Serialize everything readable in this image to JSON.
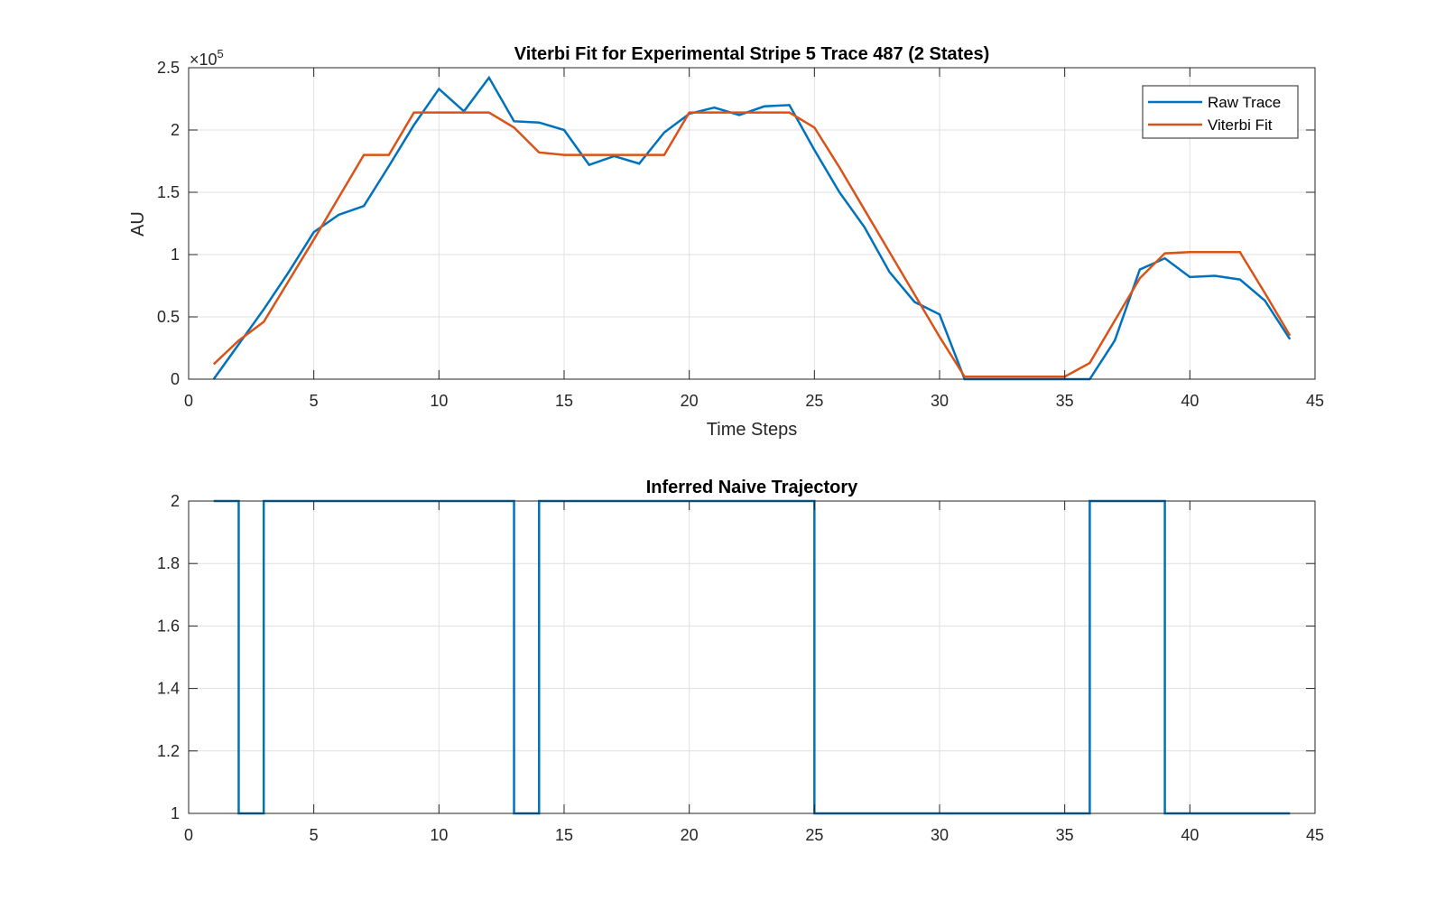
{
  "chart_data": [
    {
      "type": "line",
      "title": "Viterbi Fit for Experimental Stripe 5 Trace 487 (2 States)",
      "xlabel": "Time Steps",
      "ylabel": "AU",
      "xlim": [
        0,
        45
      ],
      "ylim": [
        0,
        250000
      ],
      "xticks": [
        0,
        5,
        10,
        15,
        20,
        25,
        30,
        35,
        40,
        45
      ],
      "xtick_labels": [
        "0",
        "5",
        "10",
        "15",
        "20",
        "25",
        "30",
        "35",
        "40",
        "45"
      ],
      "yticks": [
        0,
        50000,
        100000,
        150000,
        200000,
        250000
      ],
      "ytick_labels": [
        "0",
        "0.5",
        "1",
        "1.5",
        "2",
        "2.5"
      ],
      "y_exponent_base": "×10",
      "y_exponent_power": "5",
      "grid": true,
      "legend_position": "top-right",
      "series": [
        {
          "name": "Raw Trace",
          "color": "#0072BD",
          "x": [
            1,
            2,
            3,
            4,
            5,
            6,
            7,
            8,
            9,
            10,
            11,
            12,
            13,
            14,
            15,
            16,
            17,
            18,
            19,
            20,
            21,
            22,
            23,
            24,
            25,
            26,
            27,
            28,
            29,
            30,
            31,
            32,
            33,
            34,
            35,
            36,
            37,
            38,
            39,
            40,
            41,
            42,
            43,
            44
          ],
          "y": [
            0,
            28000,
            56000,
            86000,
            118000,
            132000,
            139000,
            171000,
            204000,
            233000,
            215000,
            242000,
            207000,
            206000,
            200000,
            172000,
            179000,
            173000,
            198000,
            213000,
            218000,
            212000,
            219000,
            220000,
            184000,
            150000,
            122000,
            86000,
            62000,
            52000,
            0,
            0,
            0,
            0,
            0,
            0,
            31000,
            88000,
            97000,
            82000,
            83000,
            80000,
            63000,
            32000
          ]
        },
        {
          "name": "Viterbi Fit",
          "color": "#D95319",
          "x": [
            1,
            2,
            3,
            4,
            5,
            6,
            7,
            8,
            9,
            10,
            11,
            12,
            13,
            14,
            15,
            16,
            17,
            18,
            19,
            20,
            21,
            22,
            23,
            24,
            25,
            26,
            27,
            28,
            29,
            30,
            31,
            32,
            33,
            34,
            35,
            36,
            37,
            38,
            39,
            40,
            41,
            42,
            43,
            44
          ],
          "y": [
            12000,
            31000,
            46000,
            79000,
            112000,
            146000,
            180000,
            180000,
            214000,
            214000,
            214000,
            214000,
            202000,
            182000,
            180000,
            180000,
            180000,
            180000,
            180000,
            214000,
            214000,
            214000,
            214000,
            214000,
            202000,
            170000,
            136000,
            102000,
            68000,
            34000,
            2000,
            2000,
            2000,
            2000,
            2000,
            13000,
            47000,
            81000,
            101000,
            102000,
            102000,
            102000,
            69000,
            35000
          ]
        }
      ]
    },
    {
      "type": "line",
      "title": "Inferred Naive Trajectory",
      "xlabel": "",
      "ylabel": "",
      "xlim": [
        0,
        45
      ],
      "ylim": [
        1,
        2
      ],
      "xticks": [
        0,
        5,
        10,
        15,
        20,
        25,
        30,
        35,
        40,
        45
      ],
      "xtick_labels": [
        "0",
        "5",
        "10",
        "15",
        "20",
        "25",
        "30",
        "35",
        "40",
        "45"
      ],
      "yticks": [
        1,
        1.2,
        1.4,
        1.6,
        1.8,
        2
      ],
      "ytick_labels": [
        "1",
        "1.2",
        "1.4",
        "1.6",
        "1.8",
        "2"
      ],
      "grid": true,
      "step": true,
      "series": [
        {
          "color": "#0072BD",
          "x": [
            1,
            2,
            3,
            4,
            5,
            6,
            7,
            8,
            9,
            10,
            11,
            12,
            13,
            14,
            15,
            16,
            17,
            18,
            19,
            20,
            21,
            22,
            23,
            24,
            25,
            26,
            27,
            28,
            29,
            30,
            31,
            32,
            33,
            34,
            35,
            36,
            37,
            38,
            39,
            40,
            41,
            42,
            43,
            44
          ],
          "y": [
            2,
            1,
            2,
            2,
            2,
            2,
            2,
            2,
            2,
            2,
            2,
            2,
            1,
            2,
            2,
            2,
            2,
            2,
            2,
            2,
            2,
            2,
            2,
            2,
            1,
            1,
            1,
            1,
            1,
            1,
            1,
            1,
            1,
            1,
            1,
            2,
            2,
            2,
            1,
            1,
            1,
            1,
            1,
            1
          ]
        }
      ]
    }
  ]
}
